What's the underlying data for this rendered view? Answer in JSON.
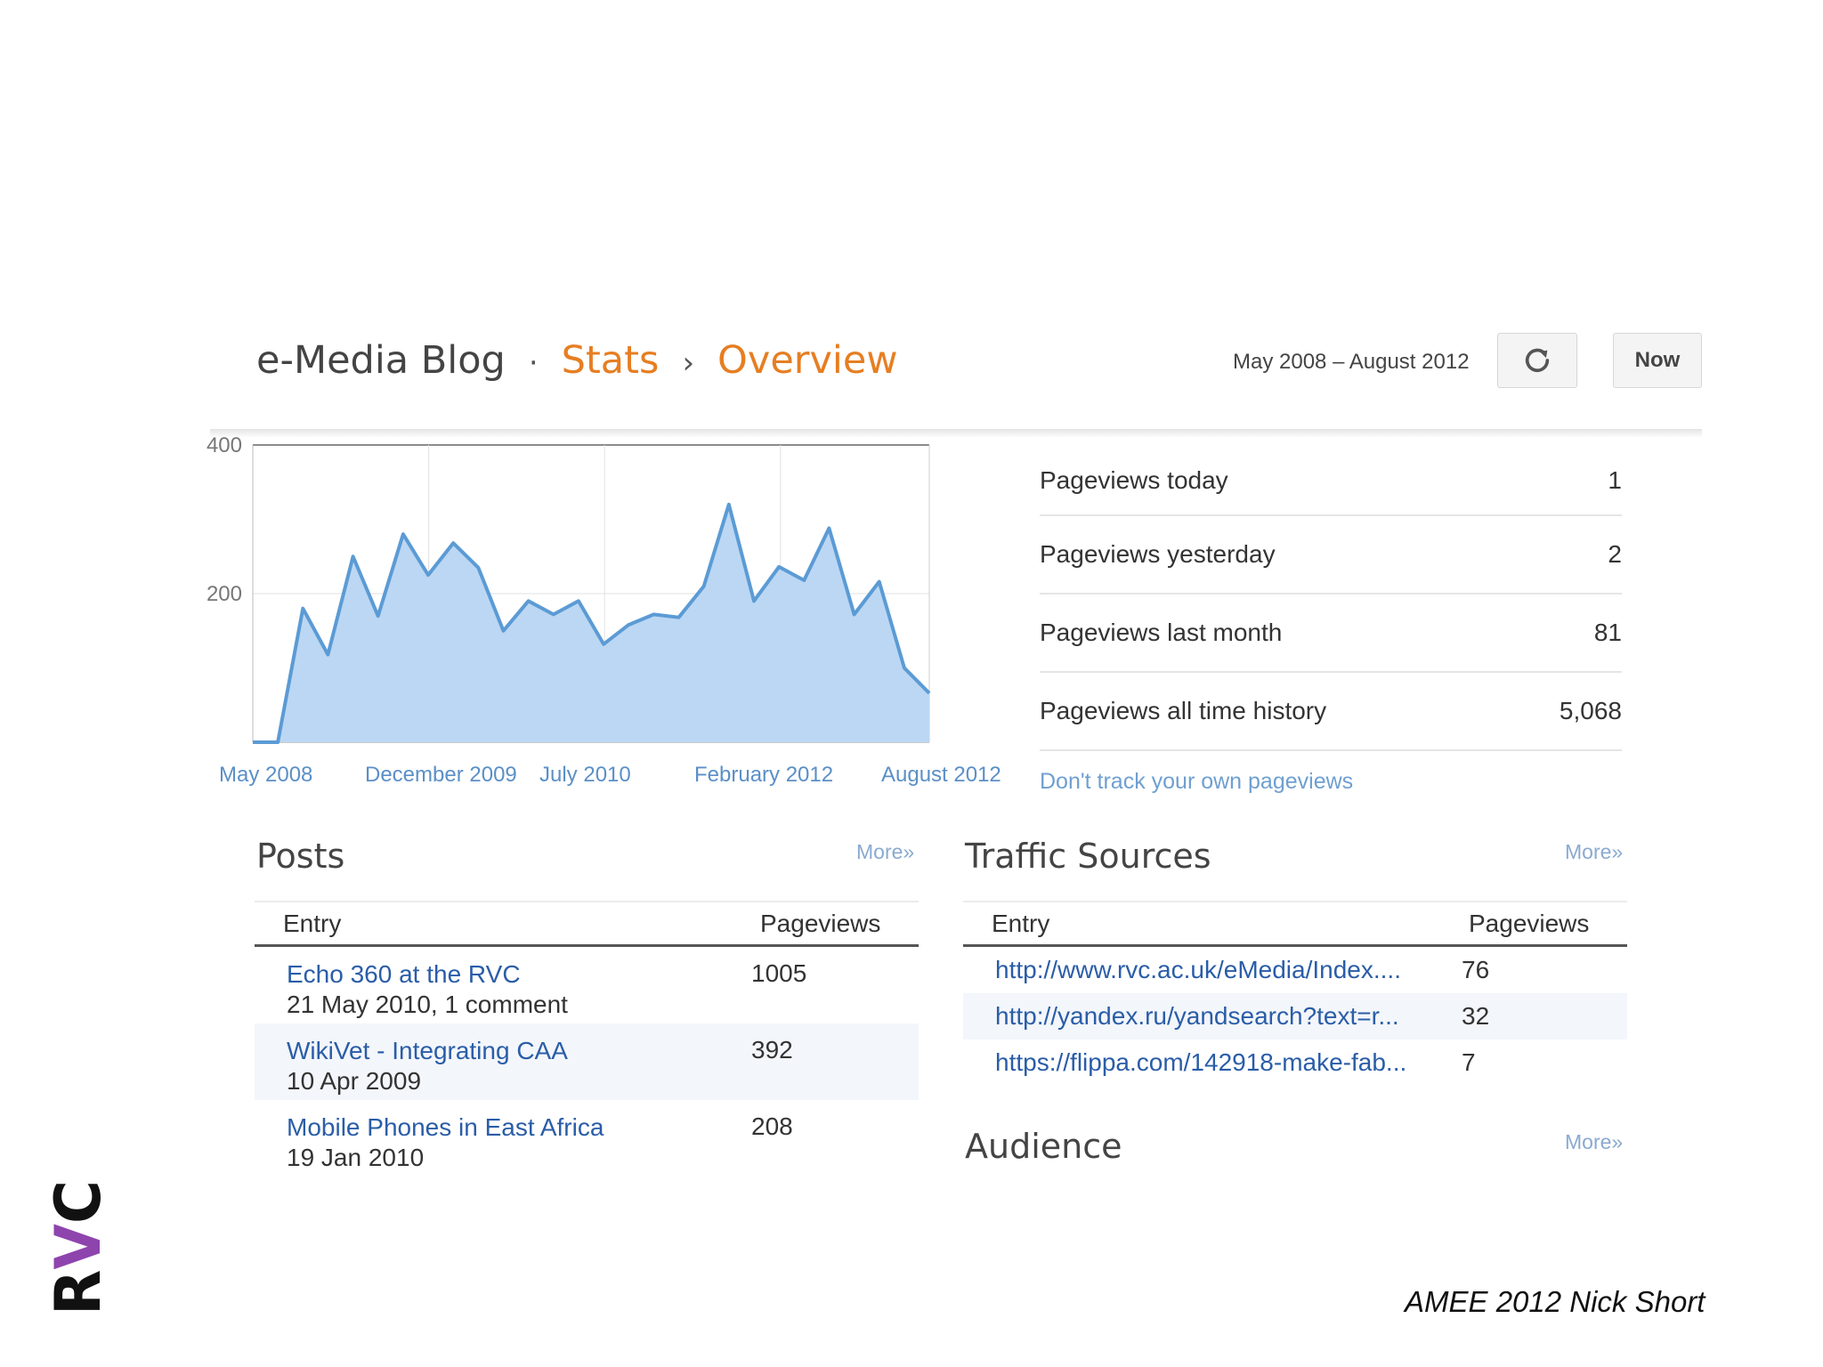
{
  "header": {
    "blog_name": "e-Media Blog",
    "separator": "·",
    "stats_label": "Stats",
    "arrow": "›",
    "overview_label": "Overview",
    "date_range": "May 2008 – August 2012",
    "now_label": "Now"
  },
  "chart_data": {
    "type": "area",
    "color": "#5b9bd5",
    "fill": "#bcd7f3",
    "ylim": [
      0,
      400
    ],
    "y_ticks": [
      "400",
      "200"
    ],
    "x_tick_labels": [
      "May 2008",
      "December 2009",
      "July 2010",
      "February 2012",
      "August 2012"
    ],
    "values": [
      0,
      0,
      180,
      118,
      250,
      170,
      280,
      225,
      268,
      235,
      150,
      190,
      172,
      190,
      132,
      158,
      172,
      168,
      210,
      320,
      190,
      236,
      218,
      288,
      172,
      216,
      100,
      66
    ]
  },
  "stats": [
    {
      "label": "Pageviews today",
      "value": "1"
    },
    {
      "label": "Pageviews yesterday",
      "value": "2"
    },
    {
      "label": "Pageviews last month",
      "value": "81"
    },
    {
      "label": "Pageviews all time history",
      "value": "5,068"
    }
  ],
  "dont_track_label": "Don't track your own pageviews",
  "posts": {
    "title": "Posts",
    "more_label": "More»",
    "col_entry": "Entry",
    "col_pageviews": "Pageviews",
    "rows": [
      {
        "title": "Echo 360 at the RVC",
        "meta": "21 May 2010, 1 comment",
        "views": "1005"
      },
      {
        "title": "WikiVet - Integrating CAA",
        "meta": "10 Apr 2009",
        "views": "392"
      },
      {
        "title": "Mobile Phones in East Africa",
        "meta": "19 Jan 2010",
        "views": "208"
      }
    ]
  },
  "traffic": {
    "title": "Traffic Sources",
    "more_label": "More»",
    "col_entry": "Entry",
    "col_pageviews": "Pageviews",
    "rows": [
      {
        "entry": "http://www.rvc.ac.uk/eMedia/Index....",
        "views": "76"
      },
      {
        "entry": "http://yandex.ru/yandsearch?text=r...",
        "views": "32"
      },
      {
        "entry": "https://flippa.com/142918-make-fab...",
        "views": "7"
      }
    ]
  },
  "audience": {
    "title": "Audience",
    "more_label": "More»"
  },
  "footer": {
    "logo_text": "RVC",
    "credit": "AMEE 2012 Nick Short"
  }
}
